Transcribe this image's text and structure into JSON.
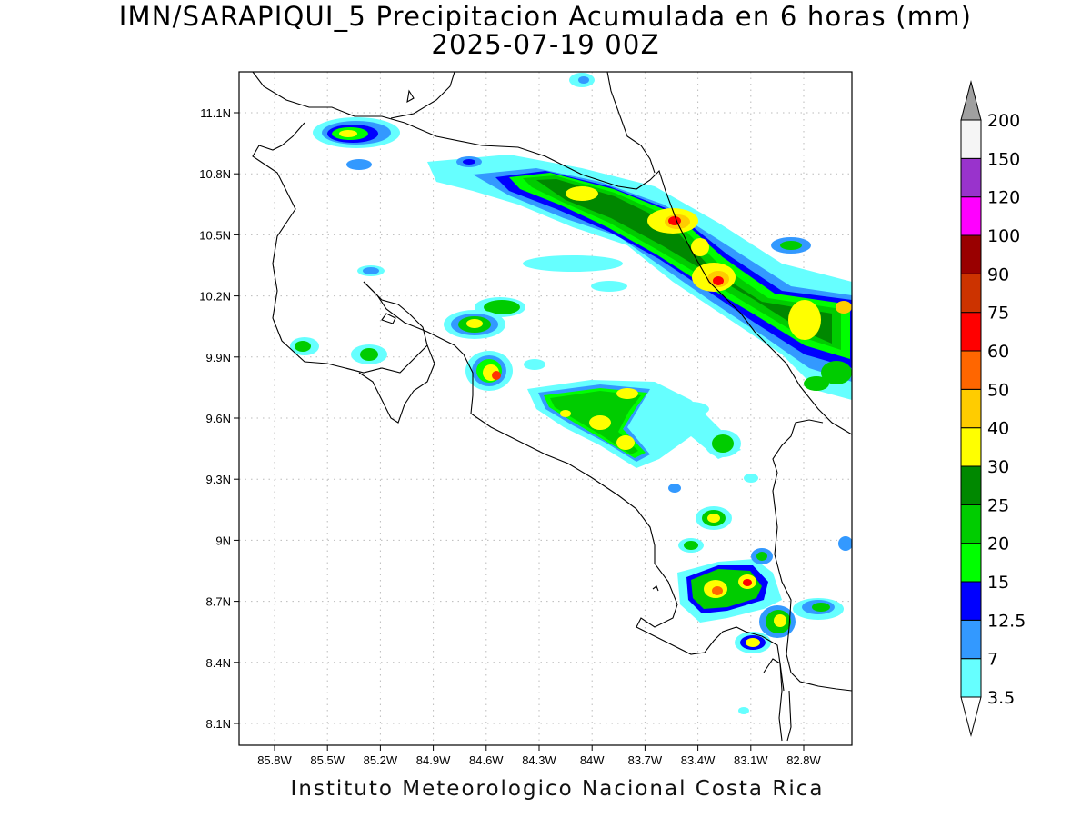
{
  "title": {
    "line1": "IMN/SARAPIQUI_5 Precipitacion Acumulada en 6 horas (mm)",
    "line2": "2025-07-19 00Z"
  },
  "footer": "Instituto Meteorologico Nacional Costa Rica",
  "map": {
    "lat_ticks": [
      "11.1N",
      "10.8N",
      "10.5N",
      "10.2N",
      "9.9N",
      "9.6N",
      "9.3N",
      "9N",
      "8.7N",
      "8.4N",
      "8.1N"
    ],
    "lon_ticks": [
      "85.8W",
      "85.5W",
      "85.2W",
      "84.9W",
      "84.6W",
      "84.3W",
      "84W",
      "83.7W",
      "83.4W",
      "83.1W",
      "82.8W"
    ]
  },
  "colorbar": {
    "colors": [
      "#66ffff",
      "#3399ff",
      "#0000ff",
      "#00ff00",
      "#00cc00",
      "#008800",
      "#ffff00",
      "#ffcc00",
      "#ff6600",
      "#ff0000",
      "#cc3300",
      "#990000",
      "#ff00ff",
      "#9933cc",
      "#f5f5f5"
    ],
    "labels": [
      "3.5",
      "7",
      "12.5",
      "15",
      "20",
      "25",
      "30",
      "40",
      "50",
      "60",
      "75",
      "90",
      "100",
      "120",
      "150",
      "200"
    ],
    "over_color": "#a0a0a0",
    "under_color": "#ffffff"
  }
}
